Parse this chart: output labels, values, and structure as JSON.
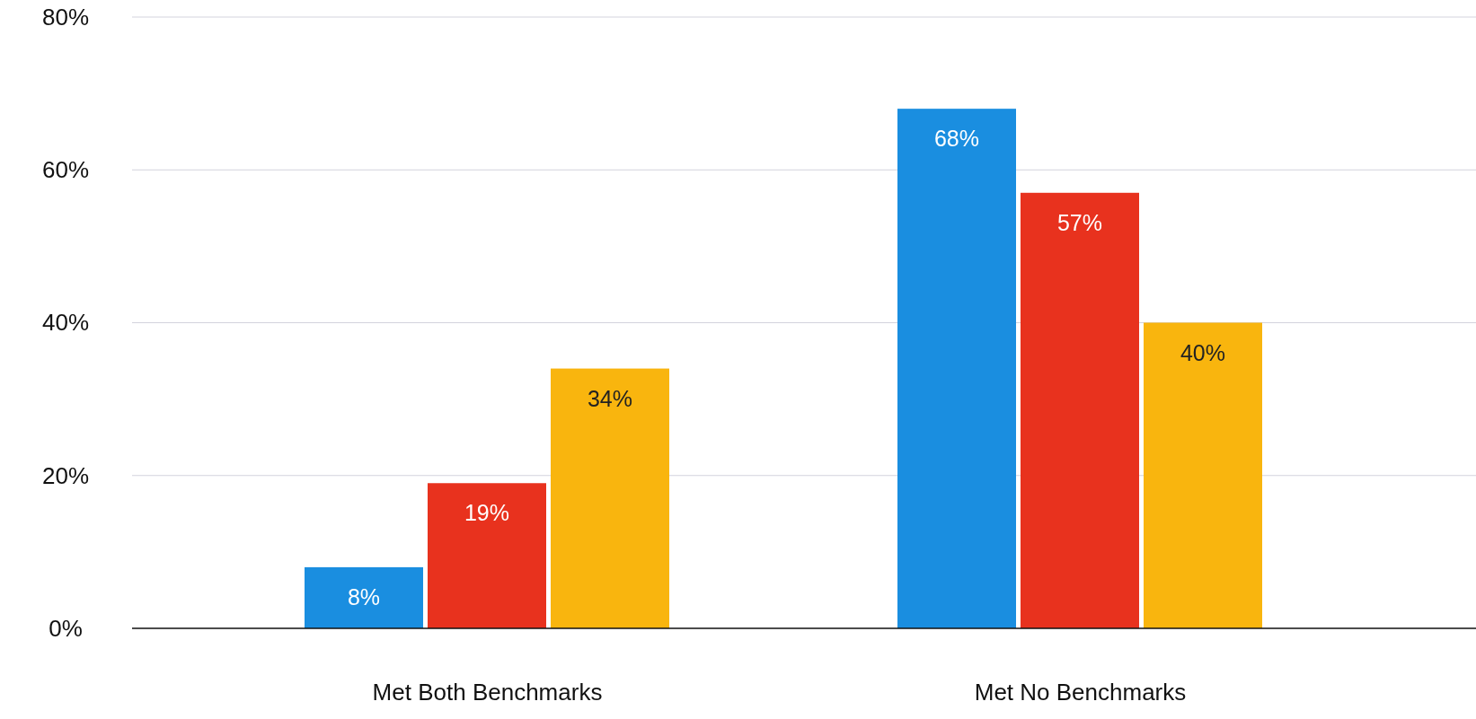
{
  "chart_data": {
    "type": "bar",
    "categories": [
      "Met Both Benchmarks",
      "Met No Benchmarks"
    ],
    "series": [
      {
        "color": "#1a8ee0",
        "values": [
          8,
          68
        ],
        "value_labels": [
          "8%",
          "68%"
        ]
      },
      {
        "color": "#e8321e",
        "values": [
          19,
          57
        ],
        "value_labels": [
          "19%",
          "57%"
        ]
      },
      {
        "color": "#f9b50e",
        "values": [
          34,
          40
        ],
        "value_labels": [
          "34%",
          "40%"
        ]
      }
    ],
    "ylim": [
      0,
      80
    ],
    "yticks": [
      {
        "value": 0,
        "label": "0%"
      },
      {
        "value": 20,
        "label": "20%"
      },
      {
        "value": 40,
        "label": "40%"
      },
      {
        "value": 60,
        "label": "60%"
      },
      {
        "value": 80,
        "label": "80%"
      }
    ],
    "grid": "y"
  }
}
